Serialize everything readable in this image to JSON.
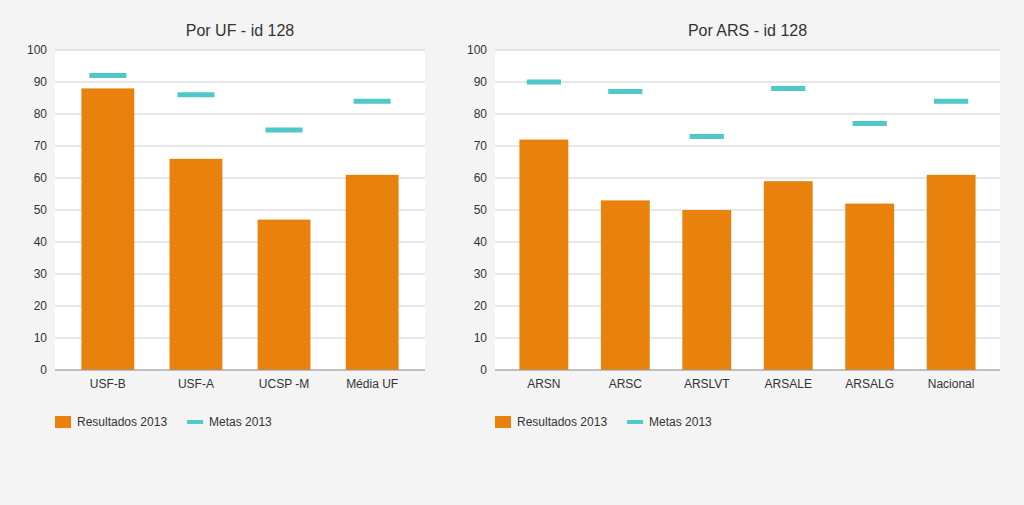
{
  "chart_data": [
    {
      "type": "bar",
      "title": "Por UF - id 128",
      "categories": [
        "USF-B",
        "USF-A",
        "UCSP -M",
        "Média UF"
      ],
      "series": [
        {
          "name": "Resultados 2013",
          "color": "#E8820C",
          "type": "bar",
          "values": [
            88,
            66,
            47,
            61
          ]
        },
        {
          "name": "Metas 2013",
          "color": "#4EC8C8",
          "type": "scatter",
          "marker": "hline",
          "values": [
            92,
            86,
            75,
            84
          ]
        }
      ],
      "ylim": [
        0,
        100
      ],
      "yticks": [
        0,
        10,
        20,
        30,
        40,
        50,
        60,
        70,
        80,
        90,
        100
      ],
      "grid": true,
      "legend": "bottom"
    },
    {
      "type": "bar",
      "title": "Por ARS - id 128",
      "categories": [
        "ARSN",
        "ARSC",
        "ARSLVT",
        "ARSALE",
        "ARSALG",
        "Nacional"
      ],
      "series": [
        {
          "name": "Resultados 2013",
          "color": "#E8820C",
          "type": "bar",
          "values": [
            72,
            53,
            50,
            59,
            52,
            61
          ]
        },
        {
          "name": "Metas 2013",
          "color": "#4EC8C8",
          "type": "scatter",
          "marker": "hline",
          "values": [
            90,
            87,
            73,
            88,
            77,
            84
          ]
        }
      ],
      "ylim": [
        0,
        100
      ],
      "yticks": [
        0,
        10,
        20,
        30,
        40,
        50,
        60,
        70,
        80,
        90,
        100
      ],
      "grid": true,
      "legend": "bottom"
    }
  ]
}
